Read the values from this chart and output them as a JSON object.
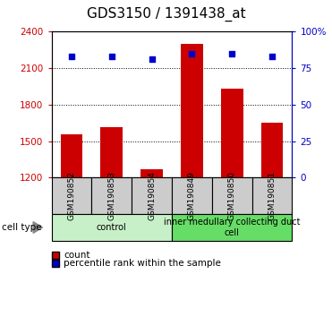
{
  "title": "GDS3150 / 1391438_at",
  "samples": [
    "GSM190852",
    "GSM190853",
    "GSM190854",
    "GSM190849",
    "GSM190850",
    "GSM190851"
  ],
  "counts": [
    1558,
    1618,
    1268,
    2300,
    1930,
    1648
  ],
  "percentiles": [
    83,
    83,
    81.5,
    85,
    85,
    83
  ],
  "ylim_left": [
    1200,
    2400
  ],
  "ylim_right": [
    0,
    100
  ],
  "yticks_left": [
    1200,
    1500,
    1800,
    2100,
    2400
  ],
  "yticks_right": [
    0,
    25,
    50,
    75,
    100
  ],
  "groups": [
    {
      "label": "control",
      "indices": [
        0,
        1,
        2
      ],
      "color": "#c8f0c8"
    },
    {
      "label": "inner medullary collecting duct\ncell",
      "indices": [
        3,
        4,
        5
      ],
      "color": "#66dd66"
    }
  ],
  "bar_color": "#cc0000",
  "scatter_color": "#0000cc",
  "bar_bottom": 1200,
  "cell_type_label": "cell type",
  "legend_count_label": "count",
  "legend_percentile_label": "percentile rank within the sample",
  "title_fontsize": 11,
  "axis_label_color_left": "#cc0000",
  "axis_label_color_right": "#0000cc",
  "tick_area_bg": "#cccccc",
  "fig_bg": "#ffffff",
  "grid_yticks": [
    1500,
    1800,
    2100
  ]
}
